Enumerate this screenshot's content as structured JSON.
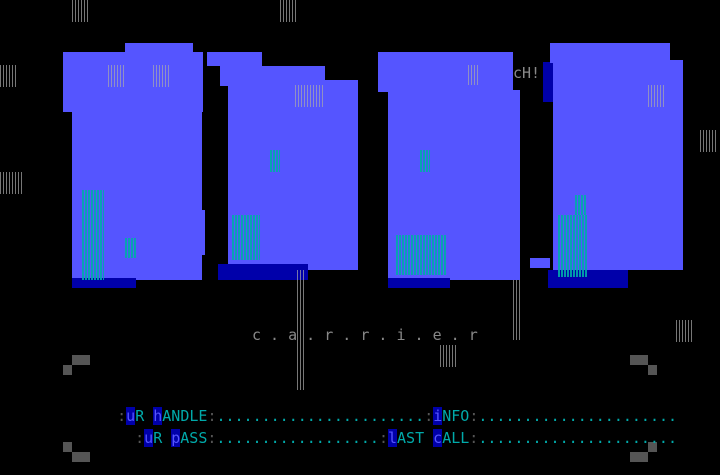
{
  "logo": {
    "group_tag": "cH!",
    "name": "c . a . r . r . i . e . r"
  },
  "login": {
    "handle": {
      "label_hl1": "u",
      "label_1": "R ",
      "label_hl2": "h",
      "label_2": "ANDLE",
      "dots": "......................."
    },
    "info": {
      "label_hl1": "i",
      "label_1": "NFO",
      "dots": "......................"
    },
    "pass": {
      "label_hl1": "u",
      "label_1": "R ",
      "label_hl2": "p",
      "label_2": "ASS",
      "dots": ".................."
    },
    "last_call": {
      "label_hl1": "l",
      "label_1": "AST ",
      "label_hl2": "c",
      "label_2": "ALL",
      "dots": "......................"
    }
  },
  "colors": {
    "block": "#5555ff",
    "shadow": "#0000aa",
    "text": "#00aaaa",
    "grey": "#555555"
  }
}
